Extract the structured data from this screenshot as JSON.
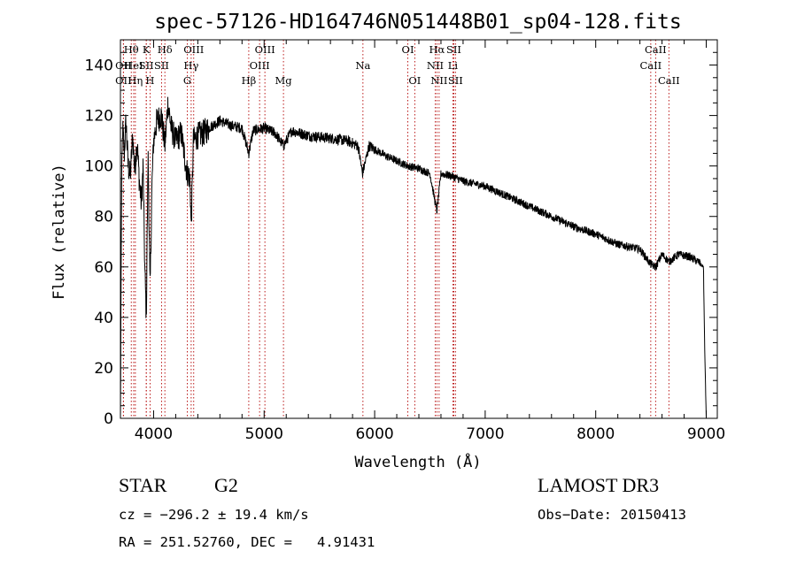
{
  "chart_data": {
    "type": "line",
    "title": "spec-57126-HD164746N051448B01_sp04-128.fits",
    "xlabel": "Wavelength (Å)",
    "ylabel": "Flux (relative)",
    "xlim": [
      3700,
      9100
    ],
    "ylim": [
      0,
      150
    ],
    "xticks": [
      4000,
      5000,
      6000,
      7000,
      8000,
      9000
    ],
    "yticks": [
      0,
      20,
      40,
      60,
      80,
      100,
      120,
      140
    ],
    "series": [
      {
        "name": "spectrum",
        "anchors_x": [
          3700,
          3710,
          3720,
          3735,
          3750,
          3770,
          3790,
          3810,
          3830,
          3850,
          3870,
          3889,
          3905,
          3920,
          3934,
          3950,
          3968,
          3985,
          4000,
          4030,
          4070,
          4102,
          4130,
          4160,
          4200,
          4250,
          4300,
          4330,
          4340,
          4360,
          4400,
          4450,
          4500,
          4600,
          4700,
          4800,
          4861,
          4900,
          5000,
          5100,
          5175,
          5250,
          5400,
          5600,
          5750,
          5850,
          5890,
          5950,
          6100,
          6300,
          6400,
          6500,
          6563,
          6600,
          6700,
          6800,
          7000,
          7200,
          7400,
          7600,
          7800,
          8000,
          8200,
          8400,
          8498,
          8542,
          8600,
          8662,
          8750,
          8850,
          8930,
          8975,
          8985,
          9000
        ],
        "anchors_y": [
          0,
          90,
          115,
          105,
          118,
          100,
          96,
          112,
          98,
          110,
          95,
          85,
          100,
          60,
          40,
          105,
          50,
          92,
          110,
          118,
          120,
          108,
          125,
          115,
          110,
          113,
          98,
          95,
          75,
          110,
          112,
          113,
          115,
          118,
          116,
          115,
          105,
          114,
          115,
          113,
          108,
          114,
          112,
          111,
          110,
          108,
          97,
          108,
          104,
          100,
          99,
          97,
          82,
          97,
          96,
          94,
          92,
          88,
          84,
          80,
          76,
          73,
          69,
          67,
          61,
          60,
          65,
          62,
          65,
          64,
          62,
          60,
          30,
          0
        ]
      }
    ],
    "spectral_lines": [
      {
        "name": "OII",
        "x": 3727,
        "row": 2
      },
      {
        "name": "OII",
        "x": 3727,
        "row": 3
      },
      {
        "name": "Hθ",
        "x": 3798,
        "row": 1
      },
      {
        "name": "HeI",
        "x": 3820,
        "row": 2
      },
      {
        "name": "Hη",
        "x": 3835,
        "row": 3
      },
      {
        "name": "K",
        "x": 3934,
        "row": 1
      },
      {
        "name": "SII",
        "x": 3934,
        "row": 2
      },
      {
        "name": "H",
        "x": 3968,
        "row": 3
      },
      {
        "name": "Hδ",
        "x": 4102,
        "row": 1
      },
      {
        "name": "SII",
        "x": 4072,
        "row": 2
      },
      {
        "name": "OIII",
        "x": 4363,
        "row": 1
      },
      {
        "name": "Hγ",
        "x": 4340,
        "row": 2
      },
      {
        "name": "G",
        "x": 4305,
        "row": 3
      },
      {
        "name": "OIII",
        "x": 5007,
        "row": 1
      },
      {
        "name": "OIII",
        "x": 4959,
        "row": 2
      },
      {
        "name": "Hβ",
        "x": 4861,
        "row": 3
      },
      {
        "name": "Mg",
        "x": 5175,
        "row": 3
      },
      {
        "name": "Na",
        "x": 5894,
        "row": 2
      },
      {
        "name": "OI",
        "x": 6300,
        "row": 1
      },
      {
        "name": "OI",
        "x": 6363,
        "row": 3
      },
      {
        "name": "Hα",
        "x": 6563,
        "row": 1
      },
      {
        "name": "SII",
        "x": 6716,
        "row": 1
      },
      {
        "name": "NII",
        "x": 6548,
        "row": 2
      },
      {
        "name": "Li",
        "x": 6708,
        "row": 2
      },
      {
        "name": "NII",
        "x": 6583,
        "row": 3
      },
      {
        "name": "SII",
        "x": 6731,
        "row": 3
      },
      {
        "name": "CaII",
        "x": 8542,
        "row": 1
      },
      {
        "name": "CaII",
        "x": 8498,
        "row": 2
      },
      {
        "name": "CaII",
        "x": 8662,
        "row": 3
      }
    ]
  },
  "info": {
    "object_class": "STAR",
    "subclass": "G2",
    "survey": "LAMOST DR3",
    "cz": "cz = −296.2 ± 19.4 km/s",
    "obs_date": "Obs−Date: 20150413",
    "coords": "RA = 251.52760, DEC =   4.91431"
  },
  "colors": {
    "axis": "#000000",
    "spectrum": "#000000",
    "line_marker": "#b30000"
  }
}
